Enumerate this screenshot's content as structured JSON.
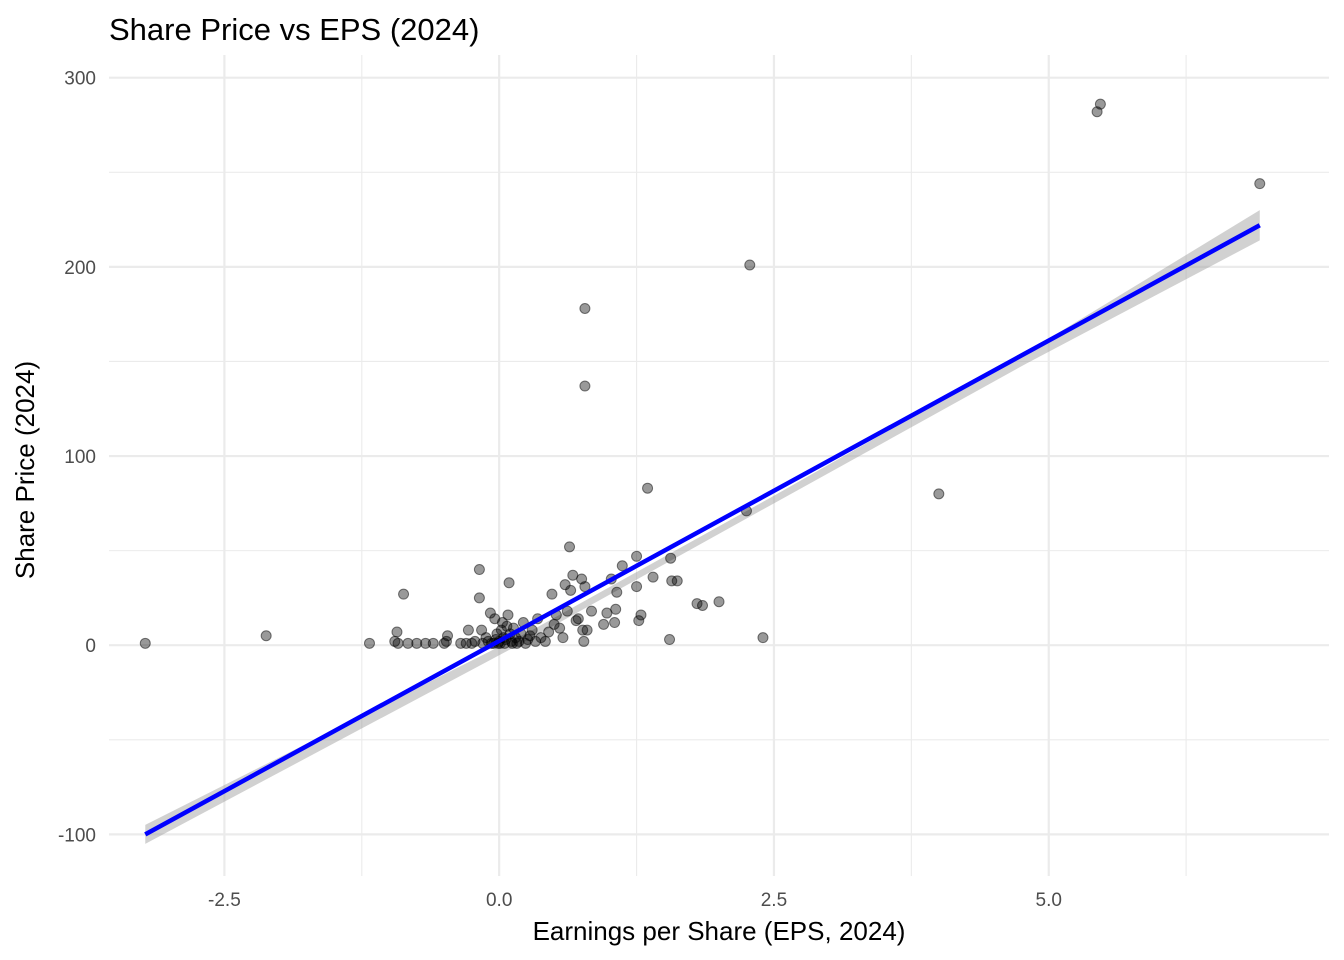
{
  "chart_data": {
    "type": "scatter",
    "title": "Share Price vs EPS (2024)",
    "xlabel": "Earnings per Share (EPS, 2024)",
    "ylabel": "Share Price (2024)",
    "xlim": [
      -3.55,
      7.55
    ],
    "ylim": [
      -122,
      312
    ],
    "x_ticks": [
      -2.5,
      0.0,
      2.5,
      5.0
    ],
    "x_tick_labels": [
      "-2.5",
      "0.0",
      "2.5",
      "5.0"
    ],
    "y_ticks": [
      -100,
      0,
      100,
      200,
      300
    ],
    "y_tick_labels": [
      "-100",
      "0",
      "100",
      "200",
      "300"
    ],
    "grid": true,
    "points": [
      [
        -3.22,
        1
      ],
      [
        -2.12,
        5
      ],
      [
        -1.18,
        1
      ],
      [
        -0.95,
        2
      ],
      [
        -0.93,
        7
      ],
      [
        -0.92,
        1
      ],
      [
        -0.87,
        27
      ],
      [
        -0.83,
        1
      ],
      [
        -0.75,
        1
      ],
      [
        -0.67,
        1
      ],
      [
        -0.6,
        1
      ],
      [
        -0.5,
        1
      ],
      [
        -0.48,
        2
      ],
      [
        -0.47,
        5
      ],
      [
        -0.35,
        1
      ],
      [
        -0.3,
        1
      ],
      [
        -0.28,
        8
      ],
      [
        -0.25,
        1
      ],
      [
        -0.22,
        2
      ],
      [
        -0.18,
        40
      ],
      [
        -0.18,
        25
      ],
      [
        -0.16,
        8
      ],
      [
        -0.15,
        1
      ],
      [
        -0.12,
        4
      ],
      [
        -0.1,
        2
      ],
      [
        -0.08,
        17
      ],
      [
        -0.07,
        1
      ],
      [
        -0.05,
        1
      ],
      [
        -0.04,
        14
      ],
      [
        -0.03,
        3
      ],
      [
        -0.02,
        6
      ],
      [
        -0.01,
        1
      ],
      [
        0.0,
        2
      ],
      [
        0.01,
        1
      ],
      [
        0.02,
        8
      ],
      [
        0.03,
        12
      ],
      [
        0.04,
        4
      ],
      [
        0.05,
        1
      ],
      [
        0.06,
        3
      ],
      [
        0.07,
        10
      ],
      [
        0.08,
        16
      ],
      [
        0.09,
        33
      ],
      [
        0.1,
        6
      ],
      [
        0.11,
        2
      ],
      [
        0.12,
        1
      ],
      [
        0.13,
        9
      ],
      [
        0.15,
        4
      ],
      [
        0.16,
        1
      ],
      [
        0.18,
        2
      ],
      [
        0.2,
        6
      ],
      [
        0.22,
        12
      ],
      [
        0.24,
        1
      ],
      [
        0.26,
        3
      ],
      [
        0.28,
        5
      ],
      [
        0.3,
        8
      ],
      [
        0.33,
        2
      ],
      [
        0.35,
        14
      ],
      [
        0.38,
        4
      ],
      [
        0.42,
        2
      ],
      [
        0.45,
        7
      ],
      [
        0.48,
        27
      ],
      [
        0.5,
        11
      ],
      [
        0.52,
        16
      ],
      [
        0.55,
        9
      ],
      [
        0.58,
        4
      ],
      [
        0.6,
        32
      ],
      [
        0.62,
        18
      ],
      [
        0.64,
        52
      ],
      [
        0.65,
        29
      ],
      [
        0.67,
        37
      ],
      [
        0.7,
        13
      ],
      [
        0.72,
        14
      ],
      [
        0.75,
        35
      ],
      [
        0.76,
        8
      ],
      [
        0.77,
        2
      ],
      [
        0.78,
        31
      ],
      [
        0.78,
        178
      ],
      [
        0.78,
        137
      ],
      [
        0.8,
        8
      ],
      [
        0.84,
        18
      ],
      [
        0.95,
        11
      ],
      [
        0.98,
        17
      ],
      [
        1.02,
        35
      ],
      [
        1.05,
        12
      ],
      [
        1.06,
        19
      ],
      [
        1.07,
        28
      ],
      [
        1.12,
        42
      ],
      [
        1.25,
        31
      ],
      [
        1.25,
        47
      ],
      [
        1.27,
        13
      ],
      [
        1.29,
        16
      ],
      [
        1.35,
        83
      ],
      [
        1.4,
        36
      ],
      [
        1.55,
        3
      ],
      [
        1.56,
        46
      ],
      [
        1.57,
        34
      ],
      [
        1.62,
        34
      ],
      [
        1.8,
        22
      ],
      [
        1.85,
        21
      ],
      [
        2.0,
        23
      ],
      [
        2.25,
        71
      ],
      [
        2.28,
        201
      ],
      [
        2.4,
        4
      ],
      [
        4.0,
        80
      ],
      [
        5.44,
        282
      ],
      [
        5.47,
        286
      ],
      [
        6.92,
        244
      ]
    ],
    "fit_line": {
      "x": [
        -3.22,
        6.92
      ],
      "y": [
        -100,
        222
      ]
    },
    "confidence_band": {
      "x": [
        -3.22,
        0.3,
        2.5,
        4.8,
        6.92
      ],
      "lower": [
        -105,
        4,
        75,
        149,
        214
      ],
      "upper": [
        -95,
        8,
        79,
        155,
        230
      ]
    },
    "colors": {
      "points": "#000000",
      "fit_line": "#0000ff",
      "band": "#999999",
      "grid": "#ebebeb",
      "tick_labels": "#4d4d4d"
    }
  }
}
